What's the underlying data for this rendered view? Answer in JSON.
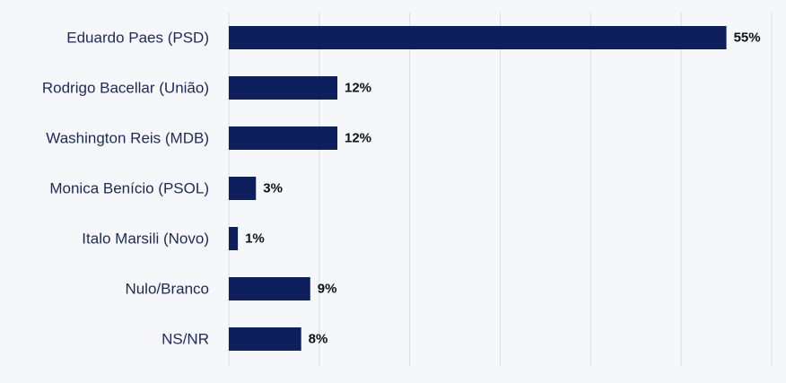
{
  "chart_data": {
    "type": "bar",
    "orientation": "horizontal",
    "categories": [
      "Eduardo Paes (PSD)",
      "Rodrigo Bacellar (União)",
      "Washington Reis (MDB)",
      "Monica Benício (PSOL)",
      "Italo Marsili (Novo)",
      "Nulo/Branco",
      "NS/NR"
    ],
    "values": [
      55,
      12,
      12,
      3,
      1,
      9,
      8
    ],
    "value_labels": [
      "55%",
      "12%",
      "12%",
      "3%",
      "1%",
      "9%",
      "8%"
    ],
    "xlim": [
      0,
      60
    ],
    "grid": true,
    "legend": "none",
    "bar_color": "#0d1f5c",
    "grid_color": "#d9dce3"
  }
}
